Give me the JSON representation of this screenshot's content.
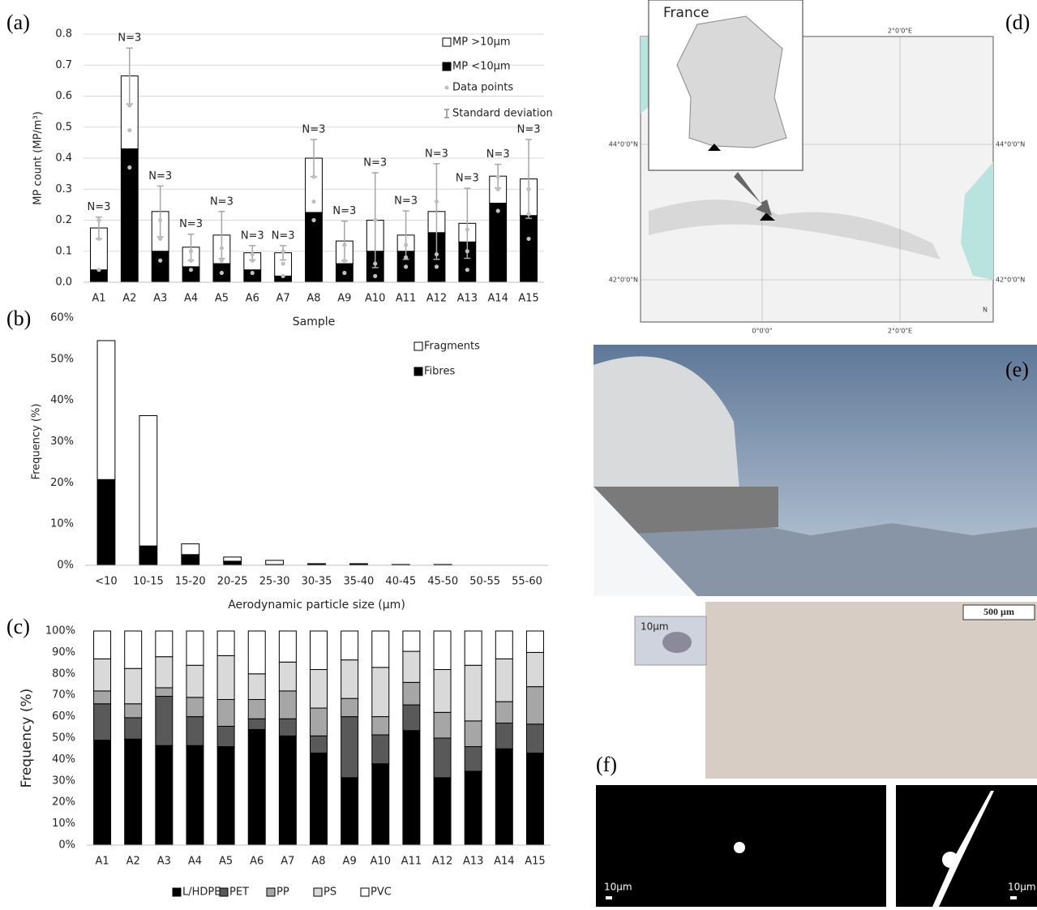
{
  "panel_labels": [
    "(a)",
    "(b)",
    "(c)",
    "(d)",
    "(e)",
    "(f)"
  ],
  "chart_data": [
    {
      "type": "bar",
      "stacked": true,
      "grid": true,
      "y_label": "MP count (MP/m³)",
      "x_label": "Sample",
      "categories": [
        "A1",
        "A2",
        "A3",
        "A4",
        "A5",
        "A6",
        "A7",
        "A8",
        "A9",
        "A10",
        "A11",
        "A12",
        "A13",
        "A14",
        "A15"
      ],
      "series": [
        {
          "name": "MP <10µm",
          "color": "#000000",
          "values": [
            0.04,
            0.43,
            0.1,
            0.05,
            0.06,
            0.04,
            0.02,
            0.225,
            0.06,
            0.1,
            0.1,
            0.16,
            0.13,
            0.255,
            0.215
          ]
        },
        {
          "name": "MP >10µm",
          "color": "#ffffff",
          "values": [
            0.135,
            0.235,
            0.128,
            0.063,
            0.092,
            0.055,
            0.075,
            0.175,
            0.073,
            0.1,
            0.052,
            0.068,
            0.06,
            0.087,
            0.118
          ],
          "errors": [
            0.035,
            0.09,
            0.082,
            0.042,
            0.076,
            0.023,
            0.023,
            0.06,
            0.064,
            0.153,
            0.078,
            0.154,
            0.113,
            0.038,
            0.127
          ]
        }
      ],
      "points": {
        "name": "Data points",
        "color": "#bfbfbf",
        "values": [
          [
            0.04,
            0.14,
            0.2
          ],
          [
            0.37,
            0.49,
            0.57
          ],
          [
            0.07,
            0.14,
            0.2
          ],
          [
            0.04,
            0.07,
            0.1
          ],
          [
            0.03,
            0.07,
            0.11
          ],
          [
            0.03,
            0.07,
            0.09
          ],
          [
            0.02,
            0.06,
            0.1
          ],
          [
            0.2,
            0.26,
            0.34
          ],
          [
            0.03,
            0.07,
            0.12
          ],
          [
            0.02,
            0.06,
            0.2
          ],
          [
            0.05,
            0.08,
            0.12
          ],
          [
            0.05,
            0.09,
            0.26
          ],
          [
            0.04,
            0.1,
            0.17
          ],
          [
            0.23,
            0.3,
            0.34
          ],
          [
            0.14,
            0.22,
            0.3
          ]
        ]
      },
      "error_label": "Standard deviation",
      "annotations": [
        "N=3",
        "N=3",
        "N=3",
        "N=3",
        "N=3",
        "N=3",
        "N=3",
        "N=3",
        "N=3",
        "N=3",
        "N=3",
        "N=3",
        "N=3",
        "N=3",
        "N=3"
      ],
      "ylim": [
        0,
        0.8
      ],
      "yticks": [
        {
          "value": 0,
          "label": "0.0"
        },
        0.1,
        0.2,
        0.3,
        0.4,
        0.5,
        0.6,
        0.7,
        0.8
      ]
    },
    {
      "type": "bar",
      "stacked": true,
      "grid": false,
      "y_label": "Frequency (%)",
      "x_label": "Aerodynamic particle size (µm)",
      "categories": [
        "<10",
        "10-15",
        "15-20",
        "20-25",
        "25-30",
        "30-35",
        "35-40",
        "40-45",
        "45-50",
        "50-55",
        "55-60"
      ],
      "series": [
        {
          "name": "Fibres",
          "color": "#000000",
          "values": [
            20.8,
            4.7,
            2.6,
            1.0,
            0.2,
            0.3,
            0.3,
            0.1,
            0.1,
            0,
            0
          ]
        },
        {
          "name": "Fragments",
          "color": "#ffffff",
          "values": [
            33.7,
            31.6,
            2.6,
            1.0,
            1.0,
            0.1,
            0.1,
            0.1,
            0.1,
            0,
            0
          ]
        }
      ],
      "ylim": [
        0,
        60
      ],
      "yticks": [
        {
          "value": 0,
          "label": "0%"
        },
        {
          "value": 10,
          "label": "10%"
        },
        {
          "value": 20,
          "label": "20%"
        },
        {
          "value": 30,
          "label": "30%"
        },
        {
          "value": 40,
          "label": "40%"
        },
        {
          "value": 50,
          "label": "50%"
        },
        {
          "value": 60,
          "label": "60%"
        }
      ]
    },
    {
      "type": "bar",
      "stacked": true,
      "grid": false,
      "y_label": "Frequency (%)",
      "categories": [
        "A1",
        "A2",
        "A3",
        "A4",
        "A5",
        "A6",
        "A7",
        "A8",
        "A9",
        "A10",
        "A11",
        "A12",
        "A13",
        "A14",
        "A15"
      ],
      "series": [
        {
          "name": "L/HDPE",
          "color": "#000000",
          "values": [
            49,
            49.5,
            46.5,
            46.5,
            46,
            54,
            51,
            43,
            31.5,
            38,
            53.5,
            31.5,
            34.5,
            45,
            43
          ]
        },
        {
          "name": "PET",
          "color": "#595959",
          "values": [
            17,
            10,
            23,
            13.5,
            9.5,
            5,
            8,
            8,
            28.5,
            13.5,
            12,
            18.5,
            11.5,
            12,
            13.5
          ]
        },
        {
          "name": "PP",
          "color": "#a6a6a6",
          "values": [
            6,
            6.5,
            4,
            9,
            12.5,
            9,
            13,
            13,
            8.5,
            8.5,
            10.5,
            12,
            12,
            10,
            17.5
          ]
        },
        {
          "name": "PS",
          "color": "#d9d9d9",
          "values": [
            15,
            16.5,
            14.5,
            15,
            20.5,
            12,
            13.5,
            18,
            18,
            23,
            14.5,
            20,
            26,
            20,
            16
          ]
        },
        {
          "name": "PVC",
          "color": "#ffffff",
          "values": [
            13,
            17.5,
            12,
            16,
            11.5,
            20,
            14.5,
            18,
            13.5,
            17,
            9.5,
            18,
            16,
            13,
            10
          ]
        }
      ],
      "ylim": [
        0,
        100
      ],
      "yticks": [
        {
          "value": 0,
          "label": "0%"
        },
        {
          "value": 10,
          "label": "10%"
        },
        {
          "value": 20,
          "label": "20%"
        },
        {
          "value": 30,
          "label": "30%"
        },
        {
          "value": 40,
          "label": "40%"
        },
        {
          "value": 50,
          "label": "50%"
        },
        {
          "value": 60,
          "label": "60%"
        },
        {
          "value": 70,
          "label": "70%"
        },
        {
          "value": 80,
          "label": "80%"
        },
        {
          "value": 90,
          "label": "90%"
        },
        {
          "value": 100,
          "label": "100%"
        }
      ]
    }
  ],
  "map": {
    "inset_title": "France",
    "lon_2": "2°0'0\"E",
    "lon_0": "0°0'0\"",
    "lat_44": "44°0'0\"N",
    "lat_42": "42°0'0\"N",
    "north": "N"
  },
  "micrograph": {
    "scale_main": "500 µm",
    "scale_inset": "10µm"
  },
  "binary_images": {
    "scale_left": "10µm",
    "scale_right": "10µm"
  }
}
